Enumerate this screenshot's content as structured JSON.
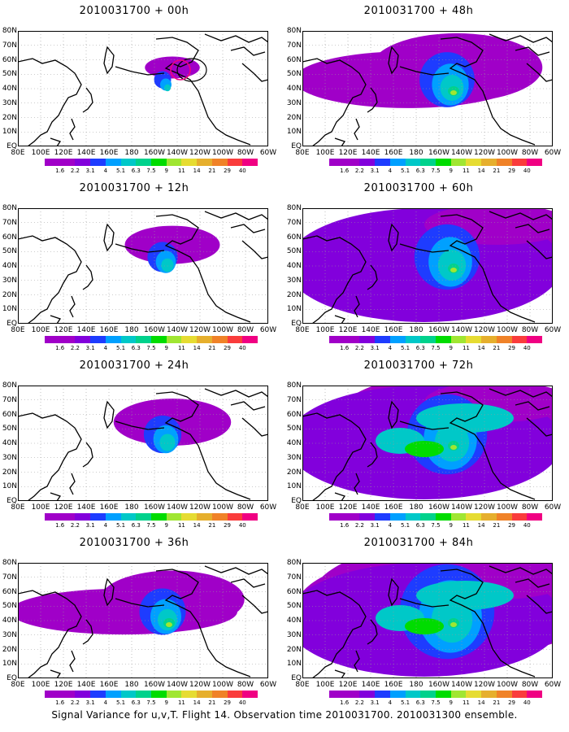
{
  "caption": "Signal Variance for u,v,T. Flight 14. Observation time 2010031700. 2010031300 ensemble.",
  "panels": [
    {
      "title": "2010031700 + 00h"
    },
    {
      "title": "2010031700 + 48h"
    },
    {
      "title": "2010031700 + 12h"
    },
    {
      "title": "2010031700 + 60h"
    },
    {
      "title": "2010031700 + 24h"
    },
    {
      "title": "2010031700 + 72h"
    },
    {
      "title": "2010031700 + 36h"
    },
    {
      "title": "2010031700 + 84h"
    }
  ],
  "axes": {
    "lon_labels": [
      "80E",
      "100E",
      "120E",
      "140E",
      "160E",
      "180",
      "160W",
      "140W",
      "120W",
      "100W",
      "80W",
      "60W"
    ],
    "lat_labels": [
      "80N",
      "70N",
      "60N",
      "50N",
      "40N",
      "30N",
      "20N",
      "10N",
      "EQ"
    ]
  },
  "colorbar": {
    "labels": [
      "1.6",
      "2.2",
      "3.1",
      "4",
      "5.1",
      "6.3",
      "7.5",
      "9",
      "11",
      "14",
      "21",
      "29",
      "40"
    ],
    "colors": [
      "#a000c8",
      "#8200dc",
      "#1e3cff",
      "#00a0ff",
      "#00c8c8",
      "#00d28c",
      "#00dc00",
      "#a0e632",
      "#e6dc32",
      "#e6af2d",
      "#f08228",
      "#fa3c3c",
      "#f00082"
    ]
  },
  "chart_data": {
    "type": "heatmap",
    "region": "North Pacific, 80E–60W, EQ–80N",
    "contour_levels": [
      1.6,
      2.2,
      3.1,
      4,
      5.1,
      6.3,
      7.5,
      9,
      11,
      14,
      21,
      29,
      40
    ],
    "lead_times_hours": [
      0,
      12,
      24,
      36,
      48,
      60,
      72,
      84
    ],
    "observation_time": "2010031700"
  }
}
